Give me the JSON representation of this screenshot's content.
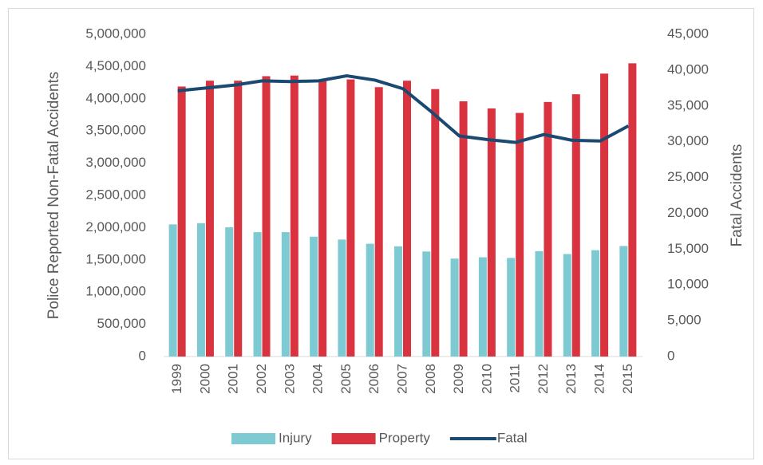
{
  "chart_data": {
    "type": "bar_line",
    "y_label": "Police Reported Non-Fatal Accidents",
    "y2_label": "Fatal Accidents",
    "categories": [
      "1999",
      "2000",
      "2001",
      "2002",
      "2003",
      "2004",
      "2005",
      "2006",
      "2007",
      "2008",
      "2009",
      "2010",
      "2011",
      "2012",
      "2013",
      "2014",
      "2015"
    ],
    "series": [
      {
        "name": "Injury",
        "type": "bar",
        "color": "#7ecad3",
        "values": [
          2050000,
          2070000,
          2005000,
          1930000,
          1930000,
          1860000,
          1815000,
          1750000,
          1710000,
          1630000,
          1520000,
          1540000,
          1530000,
          1635000,
          1590000,
          1650000,
          1715000
        ]
      },
      {
        "name": "Property",
        "type": "bar",
        "color": "#d9333f",
        "values": [
          4190000,
          4280000,
          4280000,
          4350000,
          4360000,
          4280000,
          4300000,
          4180000,
          4280000,
          4150000,
          3960000,
          3850000,
          3780000,
          3950000,
          4070000,
          4390000,
          4550000
        ]
      },
      {
        "name": "Fatal",
        "type": "line",
        "axis": "y2",
        "color": "#1a4a72",
        "values": [
          37100,
          37500,
          37900,
          38500,
          38400,
          38500,
          39200,
          38600,
          37400,
          34200,
          30800,
          30300,
          29900,
          31000,
          30200,
          30100,
          32200
        ]
      }
    ],
    "ylim": [
      0,
      5000000
    ],
    "yticks": [
      0,
      {
        "value": 500000,
        "label": "500,000"
      },
      {
        "value": 1000000,
        "label": "1,000,000"
      },
      {
        "value": 1500000,
        "label": "1,500,000"
      },
      {
        "value": 2000000,
        "label": "2,000,000"
      },
      {
        "value": 2500000,
        "label": "2,500,000"
      },
      {
        "value": 3000000,
        "label": "3,000,000"
      },
      {
        "value": 3500000,
        "label": "3,500,000"
      },
      {
        "value": 4000000,
        "label": "4,000,000"
      },
      {
        "value": 4500000,
        "label": "4,500,000"
      },
      {
        "value": 5000000,
        "label": "5,000,000"
      }
    ],
    "y2lim": [
      0,
      45000
    ],
    "y2ticks": [
      0,
      {
        "value": 5000,
        "label": "5,000"
      },
      {
        "value": 10000,
        "label": "10,000"
      },
      {
        "value": 15000,
        "label": "15,000"
      },
      {
        "value": 20000,
        "label": "20,000"
      },
      {
        "value": 25000,
        "label": "25,000"
      },
      {
        "value": 30000,
        "label": "30,000"
      },
      {
        "value": 35000,
        "label": "35,000"
      },
      {
        "value": 40000,
        "label": "40,000"
      },
      {
        "value": 45000,
        "label": "45,000"
      }
    ],
    "grid": false,
    "legend": "bottom"
  }
}
